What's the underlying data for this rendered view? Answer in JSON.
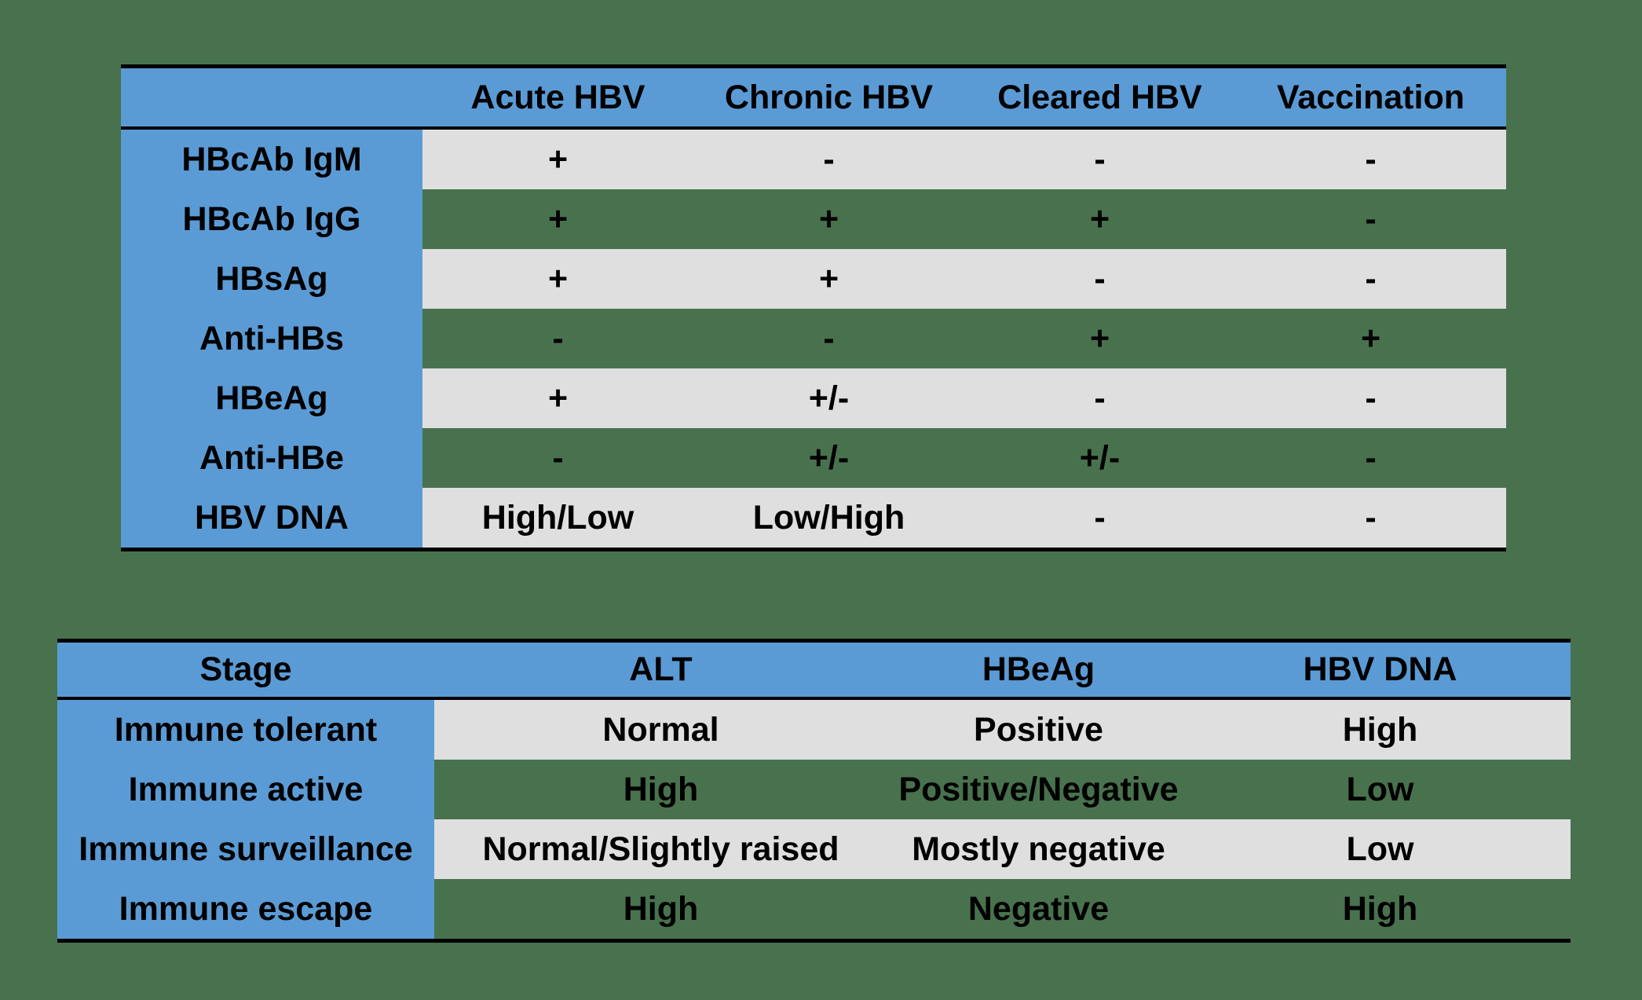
{
  "colors": {
    "background_green": "#48724d",
    "header_blue": "#5b9bd5",
    "stripe_gray": "#dfdfdf",
    "border_black": "#000000",
    "text_black": "#000000"
  },
  "serology_table": {
    "columns": [
      "",
      "Acute HBV",
      "Chronic HBV",
      "Cleared HBV",
      "Vaccination"
    ],
    "rows": [
      {
        "label": "HBcAb IgM",
        "values": [
          "+",
          "-",
          "-",
          "-"
        ]
      },
      {
        "label": "HBcAb IgG",
        "values": [
          "+",
          "+",
          "+",
          "-"
        ]
      },
      {
        "label": "HBsAg",
        "values": [
          "+",
          "+",
          "-",
          "-"
        ]
      },
      {
        "label": "Anti-HBs",
        "values": [
          "-",
          "-",
          "+",
          "+"
        ]
      },
      {
        "label": "HBeAg",
        "values": [
          "+",
          "+/-",
          "-",
          "-"
        ]
      },
      {
        "label": "Anti-HBe",
        "values": [
          "-",
          "+/-",
          "+/-",
          "-"
        ]
      },
      {
        "label": "HBV DNA",
        "values": [
          "High/Low",
          "Low/High",
          "-",
          "-"
        ]
      }
    ]
  },
  "stage_table": {
    "columns": [
      "Stage",
      "ALT",
      "HBeAg",
      "HBV DNA"
    ],
    "rows": [
      {
        "label": "Immune tolerant",
        "values": [
          "Normal",
          "Positive",
          "High"
        ]
      },
      {
        "label": "Immune active",
        "values": [
          "High",
          "Positive/Negative",
          "Low"
        ]
      },
      {
        "label": "Immune surveillance",
        "values": [
          "Normal/Slightly raised",
          "Mostly negative",
          "Low"
        ]
      },
      {
        "label": "Immune escape",
        "values": [
          "High",
          "Negative",
          "High"
        ]
      }
    ]
  }
}
